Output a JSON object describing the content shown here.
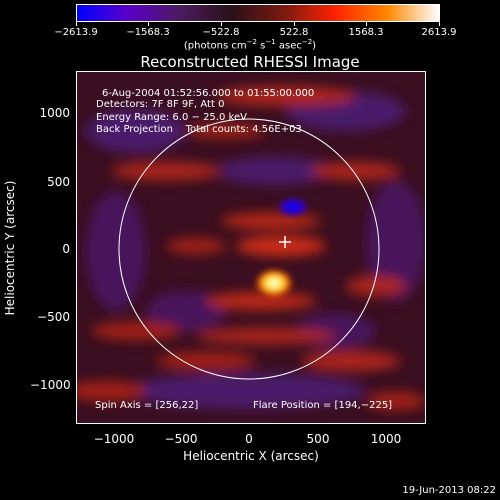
{
  "colorbar": {
    "ticks": [
      "−2613.9",
      "−1568.3",
      "−522.8",
      "522.8",
      "1568.3",
      "2613.9"
    ],
    "units_prefix": "(photons cm",
    "units_sup1": "−2",
    "units_mid1": " s",
    "units_sup2": "−1",
    "units_mid2": " asec",
    "units_sup3": "−2",
    "units_suffix": ")",
    "colors": [
      "#0000ff",
      "#5a00c8",
      "#4b1b5e",
      "#2a1118",
      "#7a1a10",
      "#ff2200",
      "#ff8800",
      "#ffffff"
    ]
  },
  "title": "Reconstructed RHESSI Image",
  "info": {
    "line1": "6-Aug-2004 01:52:56.000 to 01:55:00.000",
    "line2": "Detectors: 7F 8F 9F, Att 0",
    "line3": "Energy Range: 6.0 − 25.0 keV",
    "line4": "Back Projection    Total counts: 4.56E+03"
  },
  "axes": {
    "xlabel": "Heliocentric X (arcsec)",
    "ylabel": "Heliocentric Y (arcsec)",
    "xticks": [
      "−1000",
      "−500",
      "0",
      "500",
      "1000"
    ],
    "yticks": [
      "1000",
      "500",
      "0",
      "−500",
      "−1000"
    ]
  },
  "notes": {
    "spin_axis": "Spin Axis = [256,22]",
    "flare_position": "Flare Position = [194,−225]"
  },
  "timestamp": "19-Jun-2013 08:22"
}
